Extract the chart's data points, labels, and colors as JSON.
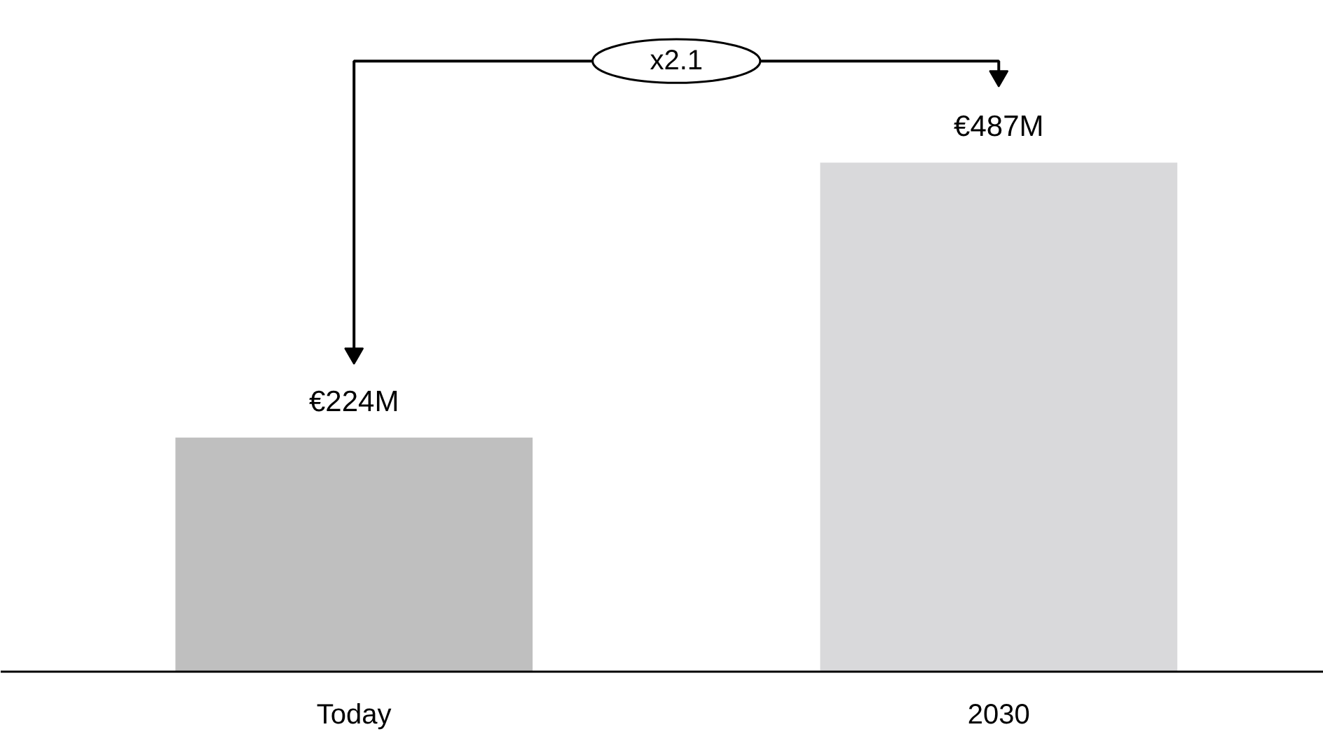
{
  "chart_data": {
    "type": "bar",
    "categories": [
      "Today",
      "2030"
    ],
    "values": [
      224,
      487
    ],
    "colors": [
      "#bfbfbf",
      "#d9d9db"
    ],
    "value_labels": [
      "€224M",
      "€487M"
    ],
    "annotations": [
      "x2.1"
    ],
    "grid": false
  }
}
